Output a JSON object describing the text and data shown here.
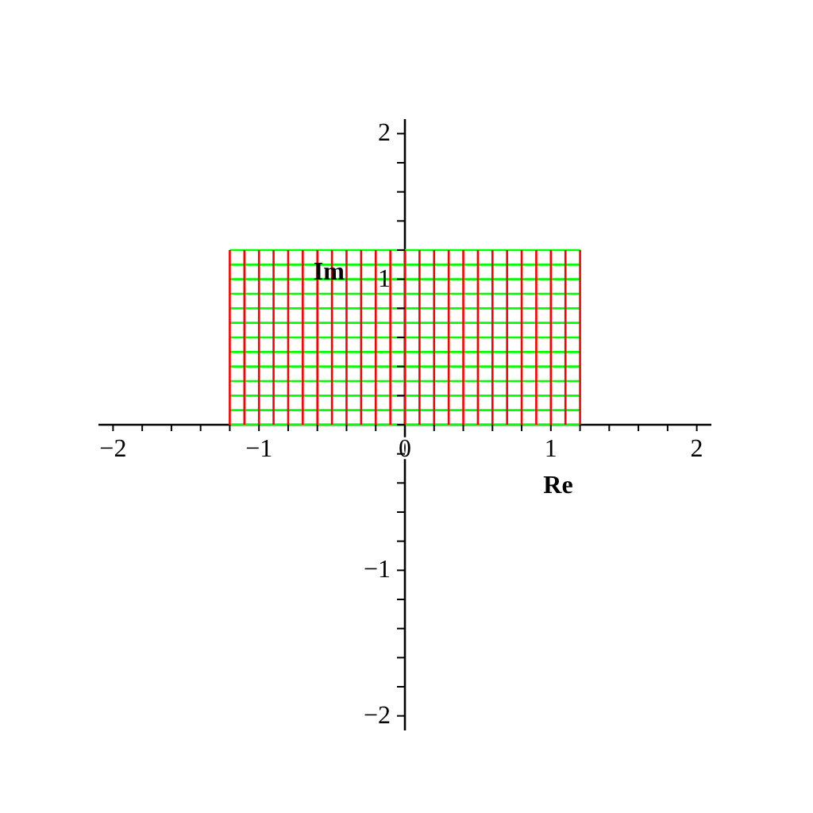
{
  "chart_data": {
    "type": "line",
    "xlabel": "Re",
    "ylabel": "Im",
    "xlim": [
      -2.1,
      2.1
    ],
    "ylim": [
      -2.1,
      2.1
    ],
    "xticks": [
      -2,
      {
        "value": -1.8,
        "label": null
      },
      {
        "value": -1.6,
        "label": null
      },
      {
        "value": -1.4,
        "label": null
      },
      {
        "value": -1.2,
        "label": null
      },
      -1,
      {
        "value": -0.8,
        "label": null
      },
      {
        "value": -0.6,
        "label": null
      },
      {
        "value": -0.4,
        "label": null
      },
      {
        "value": -0.2,
        "label": null
      },
      0,
      {
        "value": 0.2,
        "label": null
      },
      {
        "value": 0.4,
        "label": null
      },
      {
        "value": 0.6,
        "label": null
      },
      {
        "value": 0.8,
        "label": null
      },
      1,
      {
        "value": 1.2,
        "label": null
      },
      {
        "value": 1.4,
        "label": null
      },
      {
        "value": 1.6,
        "label": null
      },
      {
        "value": 1.8,
        "label": null
      },
      2
    ],
    "yticks": [
      -2,
      {
        "value": -1.8,
        "label": null
      },
      {
        "value": -1.6,
        "label": null
      },
      {
        "value": -1.4,
        "label": null
      },
      {
        "value": -1.2,
        "label": null
      },
      -1,
      {
        "value": -0.8,
        "label": null
      },
      {
        "value": -0.6,
        "label": null
      },
      {
        "value": -0.4,
        "label": null
      },
      {
        "value": -0.2,
        "label": null
      },
      {
        "value": 0,
        "label": null
      },
      {
        "value": 0.2,
        "label": null
      },
      {
        "value": 0.4,
        "label": null
      },
      {
        "value": 0.6,
        "label": null
      },
      {
        "value": 0.8,
        "label": null
      },
      1,
      {
        "value": 1.2,
        "label": null
      },
      {
        "value": 1.4,
        "label": null
      },
      {
        "value": 1.6,
        "label": null
      },
      {
        "value": 1.8,
        "label": null
      },
      2
    ],
    "grid": false,
    "marker": "none",
    "line_style": "solid",
    "series": [
      {
        "color": "#00ff00",
        "x": [
          -1.2,
          1.2
        ],
        "values": [
          0,
          0
        ]
      },
      {
        "color": "#00ff00",
        "x": [
          -1.2,
          1.2
        ],
        "values": [
          0.1,
          0.1
        ]
      },
      {
        "color": "#00ff00",
        "x": [
          -1.2,
          1.2
        ],
        "values": [
          0.2,
          0.2
        ]
      },
      {
        "color": "#00ff00",
        "x": [
          -1.2,
          1.2
        ],
        "values": [
          0.3,
          0.3
        ]
      },
      {
        "color": "#00ff00",
        "x": [
          -1.2,
          1.2
        ],
        "values": [
          0.4,
          0.4
        ]
      },
      {
        "color": "#00ff00",
        "x": [
          -1.2,
          1.2
        ],
        "values": [
          0.5,
          0.5
        ]
      },
      {
        "color": "#00ff00",
        "x": [
          -1.2,
          1.2
        ],
        "values": [
          0.6,
          0.6
        ]
      },
      {
        "color": "#00ff00",
        "x": [
          -1.2,
          1.2
        ],
        "values": [
          0.7,
          0.7
        ]
      },
      {
        "color": "#00ff00",
        "x": [
          -1.2,
          1.2
        ],
        "values": [
          0.8,
          0.8
        ]
      },
      {
        "color": "#00ff00",
        "x": [
          -1.2,
          1.2
        ],
        "values": [
          0.9,
          0.9
        ]
      },
      {
        "color": "#00ff00",
        "x": [
          -1.2,
          1.2
        ],
        "values": [
          1.0,
          1.0
        ]
      },
      {
        "color": "#00ff00",
        "x": [
          -1.2,
          1.2
        ],
        "values": [
          1.1,
          1.1
        ]
      },
      {
        "color": "#00ff00",
        "x": [
          -1.2,
          1.2
        ],
        "values": [
          1.2,
          1.2
        ]
      },
      {
        "color": "#ff0000",
        "x": [
          -1.2,
          -1.2
        ],
        "values": [
          0,
          1.2
        ]
      },
      {
        "color": "#ff0000",
        "x": [
          -1.1,
          -1.1
        ],
        "values": [
          0,
          1.2
        ]
      },
      {
        "color": "#ff0000",
        "x": [
          -1.0,
          -1.0
        ],
        "values": [
          0,
          1.2
        ]
      },
      {
        "color": "#ff0000",
        "x": [
          -0.9,
          -0.9
        ],
        "values": [
          0,
          1.2
        ]
      },
      {
        "color": "#ff0000",
        "x": [
          -0.8,
          -0.8
        ],
        "values": [
          0,
          1.2
        ]
      },
      {
        "color": "#ff0000",
        "x": [
          -0.7,
          -0.7
        ],
        "values": [
          0,
          1.2
        ]
      },
      {
        "color": "#ff0000",
        "x": [
          -0.6,
          -0.6
        ],
        "values": [
          0,
          1.2
        ]
      },
      {
        "color": "#ff0000",
        "x": [
          -0.5,
          -0.5
        ],
        "values": [
          0,
          1.2
        ]
      },
      {
        "color": "#ff0000",
        "x": [
          -0.4,
          -0.4
        ],
        "values": [
          0,
          1.2
        ]
      },
      {
        "color": "#ff0000",
        "x": [
          -0.3,
          -0.3
        ],
        "values": [
          0,
          1.2
        ]
      },
      {
        "color": "#ff0000",
        "x": [
          -0.2,
          -0.2
        ],
        "values": [
          0,
          1.2
        ]
      },
      {
        "color": "#ff0000",
        "x": [
          -0.1,
          -0.1
        ],
        "values": [
          0,
          1.2
        ]
      },
      {
        "color": "#ff0000",
        "x": [
          0,
          0
        ],
        "values": [
          0,
          1.2
        ]
      },
      {
        "color": "#ff0000",
        "x": [
          0.1,
          0.1
        ],
        "values": [
          0,
          1.2
        ]
      },
      {
        "color": "#ff0000",
        "x": [
          0.2,
          0.2
        ],
        "values": [
          0,
          1.2
        ]
      },
      {
        "color": "#ff0000",
        "x": [
          0.3,
          0.3
        ],
        "values": [
          0,
          1.2
        ]
      },
      {
        "color": "#ff0000",
        "x": [
          0.4,
          0.4
        ],
        "values": [
          0,
          1.2
        ]
      },
      {
        "color": "#ff0000",
        "x": [
          0.5,
          0.5
        ],
        "values": [
          0,
          1.2
        ]
      },
      {
        "color": "#ff0000",
        "x": [
          0.6,
          0.6
        ],
        "values": [
          0,
          1.2
        ]
      },
      {
        "color": "#ff0000",
        "x": [
          0.7,
          0.7
        ],
        "values": [
          0,
          1.2
        ]
      },
      {
        "color": "#ff0000",
        "x": [
          0.8,
          0.8
        ],
        "values": [
          0,
          1.2
        ]
      },
      {
        "color": "#ff0000",
        "x": [
          0.9,
          0.9
        ],
        "values": [
          0,
          1.2
        ]
      },
      {
        "color": "#ff0000",
        "x": [
          1.0,
          1.0
        ],
        "values": [
          0,
          1.2
        ]
      },
      {
        "color": "#ff0000",
        "x": [
          1.1,
          1.1
        ],
        "values": [
          0,
          1.2
        ]
      },
      {
        "color": "#ff0000",
        "x": [
          1.2,
          1.2
        ],
        "values": [
          0,
          1.2
        ]
      }
    ]
  }
}
